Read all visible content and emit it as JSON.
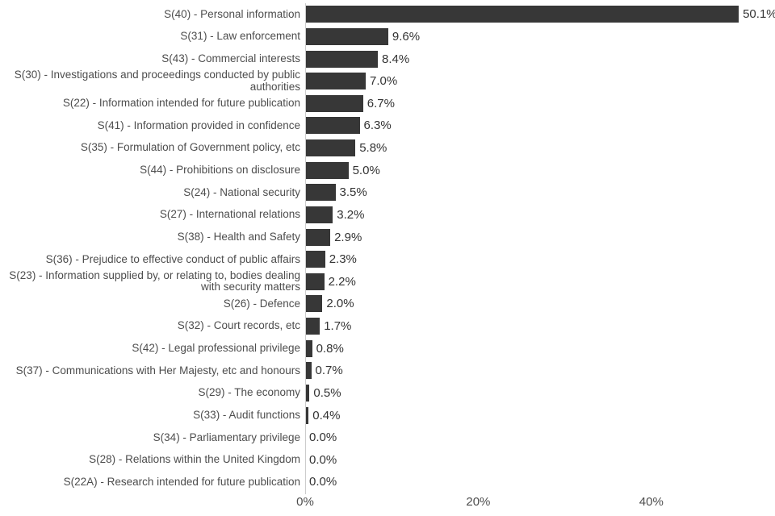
{
  "chart_data": {
    "type": "bar",
    "orientation": "horizontal",
    "title": "",
    "xlabel": "",
    "ylabel": "",
    "grid": false,
    "legend": false,
    "bar_color": "#373737",
    "axis_line_color": "#cccccc",
    "category_label_color": "#4d4d4d",
    "value_label_color": "#333333",
    "categories": [
      "S(40) - Personal information",
      "S(31) - Law enforcement",
      "S(43) - Commercial interests",
      "S(30) - Investigations and proceedings conducted by public authorities",
      "S(22) - Information intended for future publication",
      "S(41) - Information provided in confidence",
      "S(35) - Formulation of Government policy, etc",
      "S(44) - Prohibitions on disclosure",
      "S(24) - National security",
      "S(27) - International relations",
      "S(38) - Health and Safety",
      "S(36) - Prejudice to effective conduct of public affairs",
      "S(23) - Information supplied by, or relating to, bodies dealing with security matters",
      "S(26) - Defence",
      "S(32) - Court records, etc",
      "S(42) - Legal professional privilege",
      "S(37) - Communications with Her Majesty, etc and honours",
      "S(29) - The economy",
      "S(33) - Audit functions",
      "S(34) - Parliamentary privilege",
      "S(28) - Relations within the United Kingdom",
      "S(22A) - Research intended for future publication"
    ],
    "values": [
      50.1,
      9.6,
      8.4,
      7.0,
      6.7,
      6.3,
      5.8,
      5.0,
      3.5,
      3.2,
      2.9,
      2.3,
      2.2,
      2.0,
      1.7,
      0.8,
      0.7,
      0.5,
      0.4,
      0.0,
      0.0,
      0.0
    ],
    "value_labels": [
      "50.1%",
      "9.6%",
      "8.4%",
      "7.0%",
      "6.7%",
      "6.3%",
      "5.8%",
      "5.0%",
      "3.5%",
      "3.2%",
      "2.9%",
      "2.3%",
      "2.2%",
      "2.0%",
      "1.7%",
      "0.8%",
      "0.7%",
      "0.5%",
      "0.4%",
      "0.0%",
      "0.0%",
      "0.0%"
    ],
    "x_axis": {
      "tick_labels": [
        "0%",
        "20%",
        "40%"
      ],
      "tick_values": [
        0,
        20,
        40
      ],
      "range": [
        0,
        54.3
      ]
    }
  }
}
